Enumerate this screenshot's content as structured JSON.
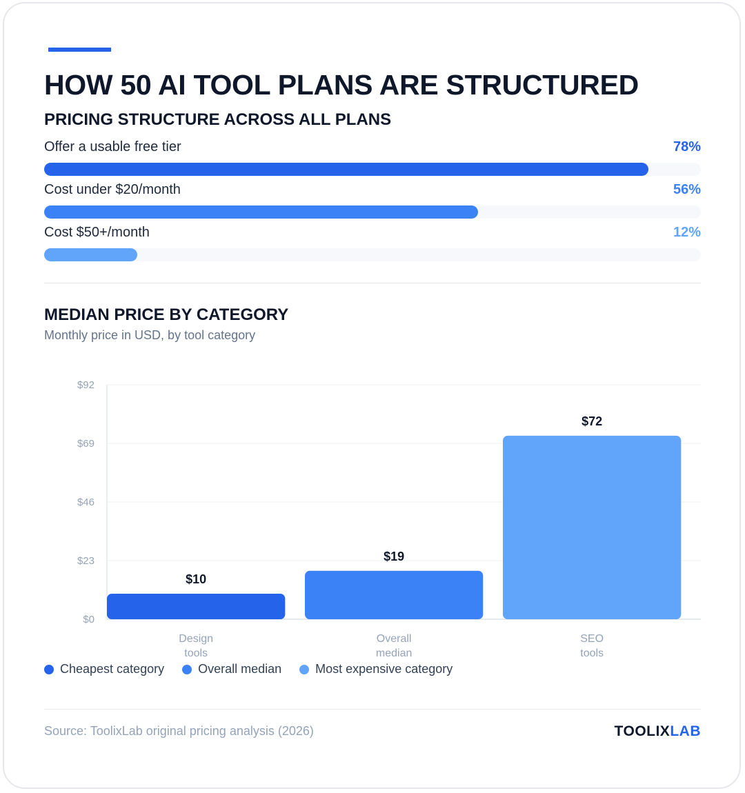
{
  "title": "HOW 50 AI TOOL PLANS ARE STRUCTURED",
  "pricing_section": {
    "title": "PRICING STRUCTURE ACROSS ALL PLANS",
    "stats": [
      {
        "label": "Offer a usable free tier",
        "value_text": "78%",
        "fraction": 0.78,
        "color": "#2563eb"
      },
      {
        "label": "Cost under $20/month",
        "value_text": "56%",
        "fraction": 0.56,
        "color": "#3b82f6"
      },
      {
        "label": "Cost $50+/month",
        "value_text": "12%",
        "fraction": 0.12,
        "color": "#60a5fa"
      }
    ]
  },
  "median_section": {
    "title": "MEDIAN PRICE BY CATEGORY",
    "subtitle": "Monthly price in USD, by tool category"
  },
  "chart_data": {
    "type": "bar",
    "categories": [
      [
        "Design",
        "tools"
      ],
      [
        "Overall",
        "median"
      ],
      [
        "SEO",
        "tools"
      ]
    ],
    "values": [
      10,
      19,
      72
    ],
    "value_labels": [
      "$10",
      "$19",
      "$72"
    ],
    "colors": [
      "#2563eb",
      "#3b82f6",
      "#60a5fa"
    ],
    "ylim": [
      0,
      92
    ],
    "yticks": [
      0,
      23,
      46,
      69,
      92
    ],
    "ytick_labels": [
      "$0",
      "$23",
      "$46",
      "$69",
      "$92"
    ],
    "grid": true,
    "legend_position": "bottom-left"
  },
  "legend": [
    {
      "label": "Cheapest category",
      "color": "#2563eb"
    },
    {
      "label": "Overall median",
      "color": "#3b82f6"
    },
    {
      "label": "Most expensive category",
      "color": "#60a5fa"
    }
  ],
  "footer": {
    "source": "Source: ToolixLab original pricing analysis (2026)",
    "brand_part1": "TOOLIX",
    "brand_part2": "LAB"
  }
}
